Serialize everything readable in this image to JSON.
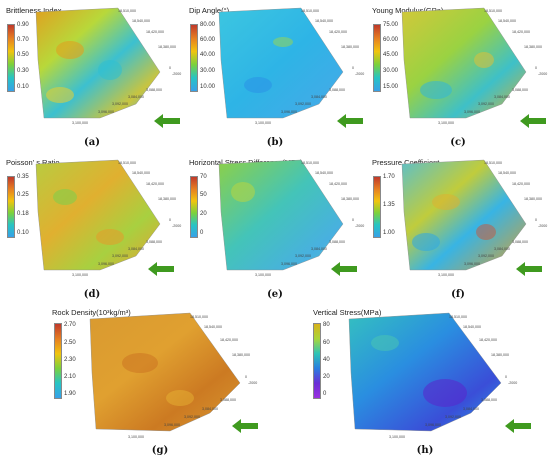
{
  "panels": [
    {
      "letter": "(a)",
      "title": "Brittleness Index",
      "ticks": [
        "0.90",
        "0.70",
        "0.50",
        "0.30",
        "0.10"
      ],
      "scale": "rainbow",
      "coords": {
        "top": "18,510,000",
        "r1": "18,540,000",
        "r2": "18,420,000",
        "r3": "18,380,000",
        "z": "0",
        "zneg": "-2000",
        "b1": "3,088,000",
        "b2": "3,084,000",
        "b3": "3,092,000",
        "b4": "3,096,000",
        "b5": "3,100,000"
      }
    },
    {
      "letter": "(b)",
      "title": "Dip Angle(°)",
      "ticks": [
        "80.00",
        "60.00",
        "40.00",
        "30.00",
        "10.00"
      ],
      "scale": "rainbow",
      "coords": {
        "top": "18,510,000",
        "r1": "18,540,000",
        "r2": "18,420,000",
        "r3": "18,380,000",
        "z": "0",
        "zneg": "-2000",
        "b1": "3,088,000",
        "b2": "3,084,000",
        "b3": "3,092,000",
        "b4": "3,096,000",
        "b5": "3,100,000"
      }
    },
    {
      "letter": "(c)",
      "title": "Young Modulus(GPa)",
      "ticks": [
        "75.00",
        "60.00",
        "45.00",
        "30.00",
        "15.00"
      ],
      "scale": "rainbow",
      "coords": {
        "top": "18,510,000",
        "r1": "18,540,000",
        "r2": "18,420,000",
        "r3": "18,380,000",
        "z": "0",
        "zneg": "-2000",
        "b1": "3,088,000",
        "b2": "3,084,000",
        "b3": "3,092,000",
        "b4": "3,096,000",
        "b5": "3,100,000"
      }
    },
    {
      "letter": "(d)",
      "title": "Poisson' s Ratio",
      "ticks": [
        "0.35",
        "0.25",
        "0.18",
        "0.10"
      ],
      "scale": "rainbow",
      "coords": {
        "top": "18,510,000",
        "r1": "18,540,000",
        "r2": "18,420,000",
        "r3": "18,380,000",
        "z": "0",
        "zneg": "-2000",
        "b1": "3,088,000",
        "b2": "3,084,000",
        "b3": "3,092,000",
        "b4": "3,096,000",
        "b5": "3,100,000"
      }
    },
    {
      "letter": "(e)",
      "title": "Horizontal Stress Difference(MPa)",
      "ticks": [
        "70",
        "50",
        "20",
        "0"
      ],
      "scale": "rainbow",
      "coords": {
        "top": "18,510,000",
        "r1": "18,540,000",
        "r2": "18,420,000",
        "r3": "18,380,000",
        "z": "0",
        "zneg": "-2000",
        "b1": "3,088,000",
        "b2": "3,084,000",
        "b3": "3,092,000",
        "b4": "3,096,000",
        "b5": "3,100,000"
      }
    },
    {
      "letter": "(f)",
      "title": "Pressure Coefficient",
      "ticks": [
        "1.70",
        "1.35",
        "1.00"
      ],
      "scale": "rainbow",
      "coords": {
        "top": "18,510,000",
        "r1": "18,540,000",
        "r2": "18,420,000",
        "r3": "18,380,000",
        "z": "0",
        "zneg": "-2000",
        "b1": "3,088,000",
        "b2": "3,084,000",
        "b3": "3,092,000",
        "b4": "3,096,000",
        "b5": "3,100,000"
      }
    },
    {
      "letter": "(g)",
      "title": "Rock Density(10³kg/m³)",
      "ticks": [
        "2.70",
        "2.50",
        "2.30",
        "2.10",
        "1.90"
      ],
      "scale": "rainbow",
      "coords": {
        "top": "18,510,000",
        "r1": "18,540,000",
        "r2": "18,420,000",
        "r3": "18,380,000",
        "z": "0",
        "zneg": "-2000",
        "b1": "3,088,000",
        "b2": "3,084,000",
        "b3": "3,092,000",
        "b4": "3,096,000",
        "b5": "3,100,000"
      }
    },
    {
      "letter": "(h)",
      "title": "Vertical Stress(MPa)",
      "ticks": [
        "80",
        "60",
        "40",
        "20",
        "0"
      ],
      "scale": "rainbow",
      "coords": {
        "top": "18,510,000",
        "r1": "18,540,000",
        "r2": "18,420,000",
        "r3": "18,380,000",
        "z": "0",
        "zneg": "-2000",
        "b1": "3,088,000",
        "b2": "3,084,000",
        "b3": "3,092,000",
        "b4": "3,096,000",
        "b5": "3,100,000"
      }
    }
  ],
  "colors": {
    "rainbow": [
      "#c0392b",
      "#e67e22",
      "#f1c40f",
      "#7bd13c",
      "#27c4c4",
      "#37a0e8"
    ],
    "vstress": [
      "#d9b21a",
      "#a8d63a",
      "#2ec4b6",
      "#2a7ee0",
      "#6a2fd6",
      "#9b30e0"
    ],
    "arrow": "#3f9a1f"
  }
}
